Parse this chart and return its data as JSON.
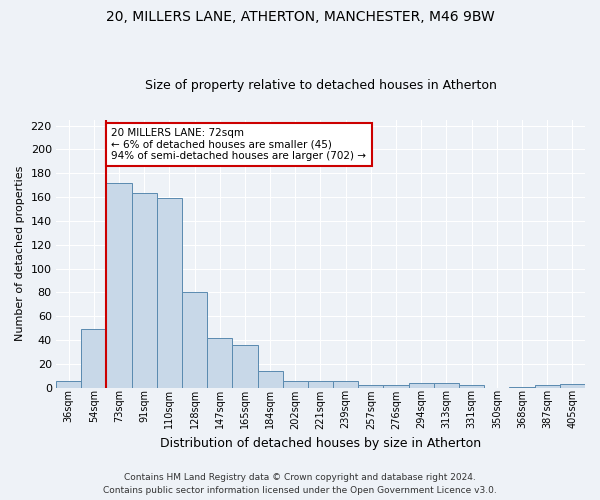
{
  "title_line1": "20, MILLERS LANE, ATHERTON, MANCHESTER, M46 9BW",
  "title_line2": "Size of property relative to detached houses in Atherton",
  "xlabel": "Distribution of detached houses by size in Atherton",
  "ylabel": "Number of detached properties",
  "categories": [
    "36sqm",
    "54sqm",
    "73sqm",
    "91sqm",
    "110sqm",
    "128sqm",
    "147sqm",
    "165sqm",
    "184sqm",
    "202sqm",
    "221sqm",
    "239sqm",
    "257sqm",
    "276sqm",
    "294sqm",
    "313sqm",
    "331sqm",
    "350sqm",
    "368sqm",
    "387sqm",
    "405sqm"
  ],
  "values": [
    6,
    49,
    172,
    163,
    159,
    80,
    42,
    36,
    14,
    6,
    6,
    6,
    2,
    2,
    4,
    4,
    2,
    0,
    1,
    2,
    3
  ],
  "bar_color": "#c8d8e8",
  "bar_edge_color": "#5a8ab0",
  "vline_x_index": 1.5,
  "vline_color": "#cc0000",
  "annotation_text": "20 MILLERS LANE: 72sqm\n← 6% of detached houses are smaller (45)\n94% of semi-detached houses are larger (702) →",
  "annotation_box_color": "#ffffff",
  "annotation_box_edge_color": "#cc0000",
  "ylim": [
    0,
    225
  ],
  "yticks": [
    0,
    20,
    40,
    60,
    80,
    100,
    120,
    140,
    160,
    180,
    200,
    220
  ],
  "footer_line1": "Contains HM Land Registry data © Crown copyright and database right 2024.",
  "footer_line2": "Contains public sector information licensed under the Open Government Licence v3.0.",
  "bg_color": "#eef2f7",
  "plot_bg_color": "#eef2f7",
  "grid_color": "#ffffff",
  "title1_fontsize": 10,
  "title2_fontsize": 9,
  "ylabel_fontsize": 8,
  "xlabel_fontsize": 9
}
